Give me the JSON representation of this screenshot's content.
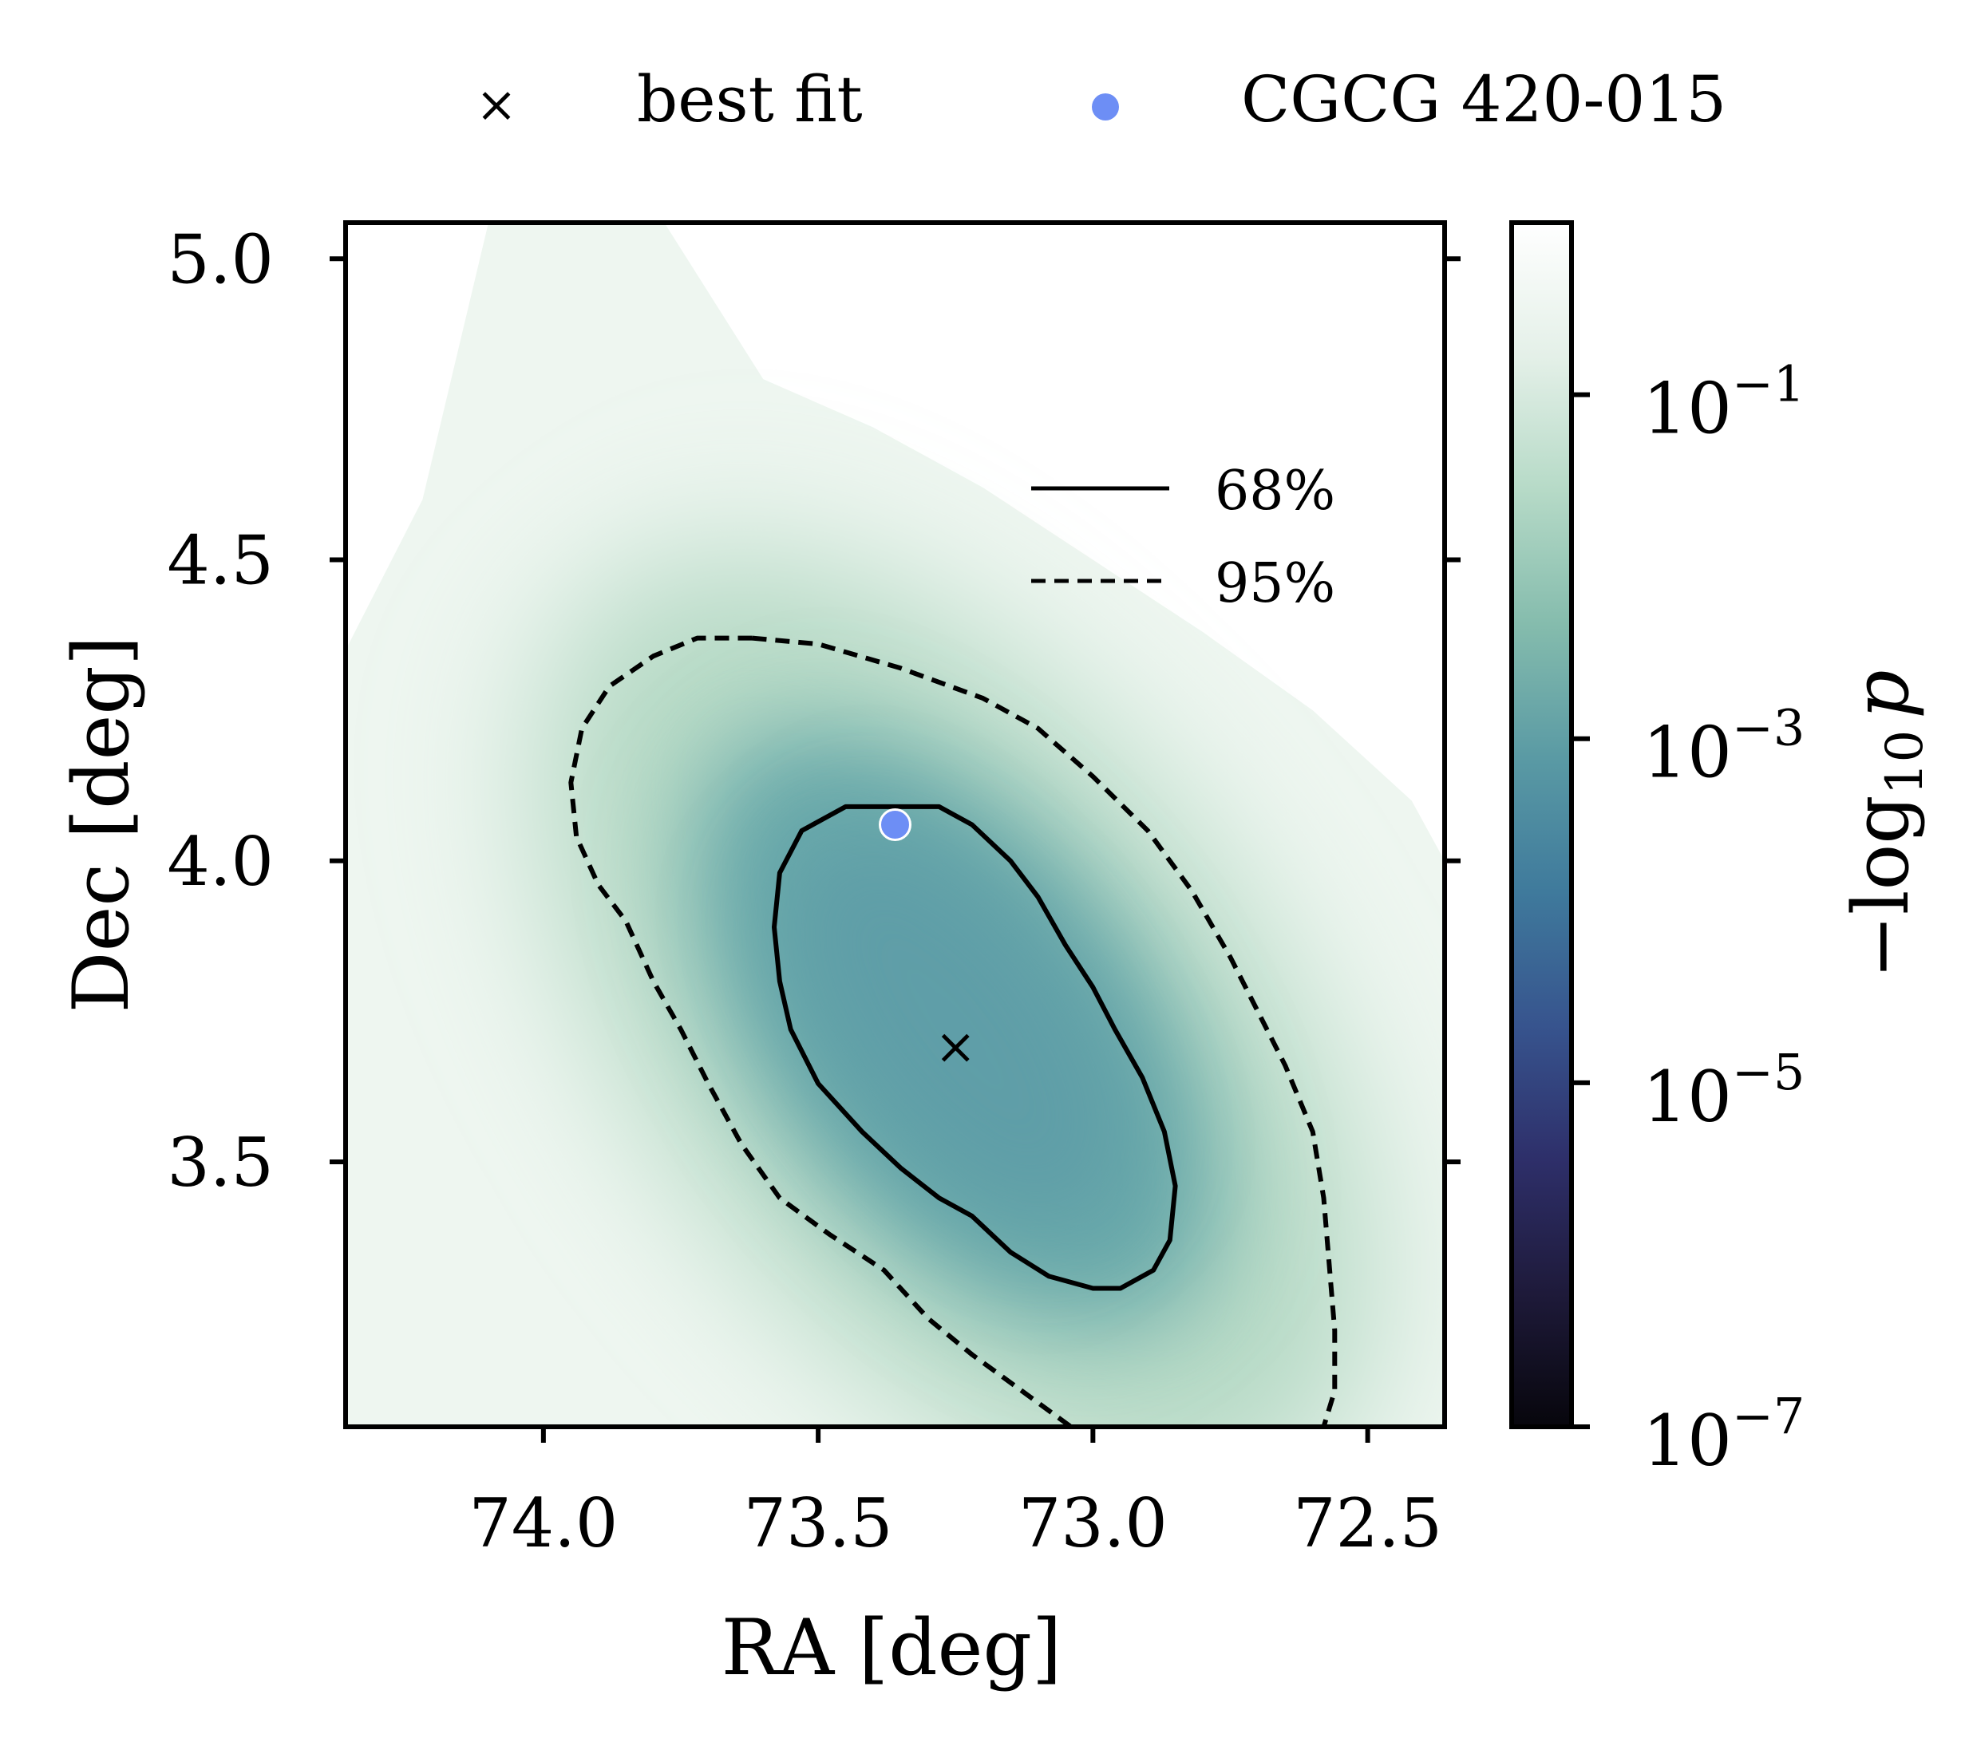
{
  "chart_data": {
    "type": "heatmap",
    "xlabel": "RA [deg]",
    "ylabel": "Dec [deg]",
    "xlim": [
      74.36,
      72.36
    ],
    "ylim": [
      3.06,
      5.06
    ],
    "x_axis_inverted": true,
    "xticks": [
      {
        "value": 74.0,
        "label": "74.0"
      },
      {
        "value": 73.5,
        "label": "73.5"
      },
      {
        "value": 73.0,
        "label": "73.0"
      },
      {
        "value": 72.5,
        "label": "72.5"
      }
    ],
    "yticks": [
      {
        "value": 3.5,
        "label": "3.5"
      },
      {
        "value": 4.0,
        "label": "4.0"
      },
      {
        "value": 4.5,
        "label": "4.5"
      },
      {
        "value": 5.0,
        "label": "5.0"
      }
    ],
    "colorbar": {
      "label_main": "−log",
      "label_sub": "10",
      "label_var": "p",
      "scale": "log",
      "range": [
        1e-07,
        1
      ],
      "colormap": [
        "#07060c",
        "#1e1a3a",
        "#2e2f6a",
        "#37548e",
        "#3f7a9c",
        "#5a9aa4",
        "#85bcad",
        "#b6dac7",
        "#e4f0e8",
        "#ffffff"
      ],
      "ticks": [
        {
          "value": 1e-07,
          "base": "10",
          "exp": "−7"
        },
        {
          "value": 1e-05,
          "base": "10",
          "exp": "−5"
        },
        {
          "value": 0.001,
          "base": "10",
          "exp": "−3"
        },
        {
          "value": 0.1,
          "base": "10",
          "exp": "−1"
        }
      ]
    },
    "best_fit": {
      "ra": 73.25,
      "dec": 3.69,
      "label": "best fit"
    },
    "source": {
      "ra": 73.36,
      "dec": 4.06,
      "label": "CGCG 420-015",
      "color": "#6d8ef5"
    },
    "distribution": {
      "center_ra": 73.25,
      "center_dec": 3.72
    },
    "contours": [
      {
        "level": "68%",
        "style": "solid",
        "points": [
          [
            73.36,
            4.09
          ],
          [
            73.28,
            4.09
          ],
          [
            73.22,
            4.06
          ],
          [
            73.15,
            4.0
          ],
          [
            73.1,
            3.94
          ],
          [
            73.05,
            3.86
          ],
          [
            73.0,
            3.79
          ],
          [
            72.96,
            3.72
          ],
          [
            72.91,
            3.64
          ],
          [
            72.87,
            3.55
          ],
          [
            72.85,
            3.46
          ],
          [
            72.86,
            3.37
          ],
          [
            72.89,
            3.32
          ],
          [
            72.95,
            3.29
          ],
          [
            73.0,
            3.29
          ],
          [
            73.08,
            3.31
          ],
          [
            73.15,
            3.35
          ],
          [
            73.22,
            3.41
          ],
          [
            73.28,
            3.44
          ],
          [
            73.35,
            3.49
          ],
          [
            73.42,
            3.55
          ],
          [
            73.5,
            3.63
          ],
          [
            73.55,
            3.72
          ],
          [
            73.57,
            3.8
          ],
          [
            73.58,
            3.89
          ],
          [
            73.57,
            3.98
          ],
          [
            73.53,
            4.05
          ],
          [
            73.45,
            4.09
          ]
        ]
      },
      {
        "level": "95%",
        "style": "dashed",
        "points": [
          [
            73.62,
            4.37
          ],
          [
            73.5,
            4.36
          ],
          [
            73.35,
            4.32
          ],
          [
            73.2,
            4.27
          ],
          [
            73.1,
            4.22
          ],
          [
            73.0,
            4.14
          ],
          [
            72.9,
            4.05
          ],
          [
            72.82,
            3.95
          ],
          [
            72.75,
            3.84
          ],
          [
            72.7,
            3.75
          ],
          [
            72.65,
            3.66
          ],
          [
            72.6,
            3.55
          ],
          [
            72.58,
            3.44
          ],
          [
            72.57,
            3.33
          ],
          [
            72.56,
            3.22
          ],
          [
            72.56,
            3.12
          ],
          [
            72.58,
            3.06
          ]
        ]
      },
      {
        "level": "95%",
        "style": "dashed",
        "points": [
          [
            73.62,
            4.37
          ],
          [
            73.72,
            4.37
          ],
          [
            73.8,
            4.34
          ],
          [
            73.88,
            4.29
          ],
          [
            73.93,
            4.22
          ],
          [
            73.95,
            4.13
          ],
          [
            73.94,
            4.04
          ],
          [
            73.9,
            3.96
          ],
          [
            73.85,
            3.9
          ],
          [
            73.8,
            3.8
          ],
          [
            73.75,
            3.72
          ],
          [
            73.7,
            3.63
          ],
          [
            73.64,
            3.53
          ],
          [
            73.57,
            3.44
          ],
          [
            73.48,
            3.38
          ],
          [
            73.38,
            3.32
          ],
          [
            73.3,
            3.24
          ],
          [
            73.22,
            3.18
          ],
          [
            73.13,
            3.12
          ],
          [
            73.04,
            3.06
          ]
        ]
      }
    ],
    "legend_top": [
      {
        "marker": "×",
        "label": "best fit"
      },
      {
        "marker": "dot",
        "label": "CGCG 420-015"
      }
    ],
    "legend_inner": [
      {
        "style": "solid",
        "label": "68%"
      },
      {
        "style": "dashed",
        "label": "95%"
      }
    ],
    "legend_inner_placement": "upper-right",
    "grid": false
  }
}
